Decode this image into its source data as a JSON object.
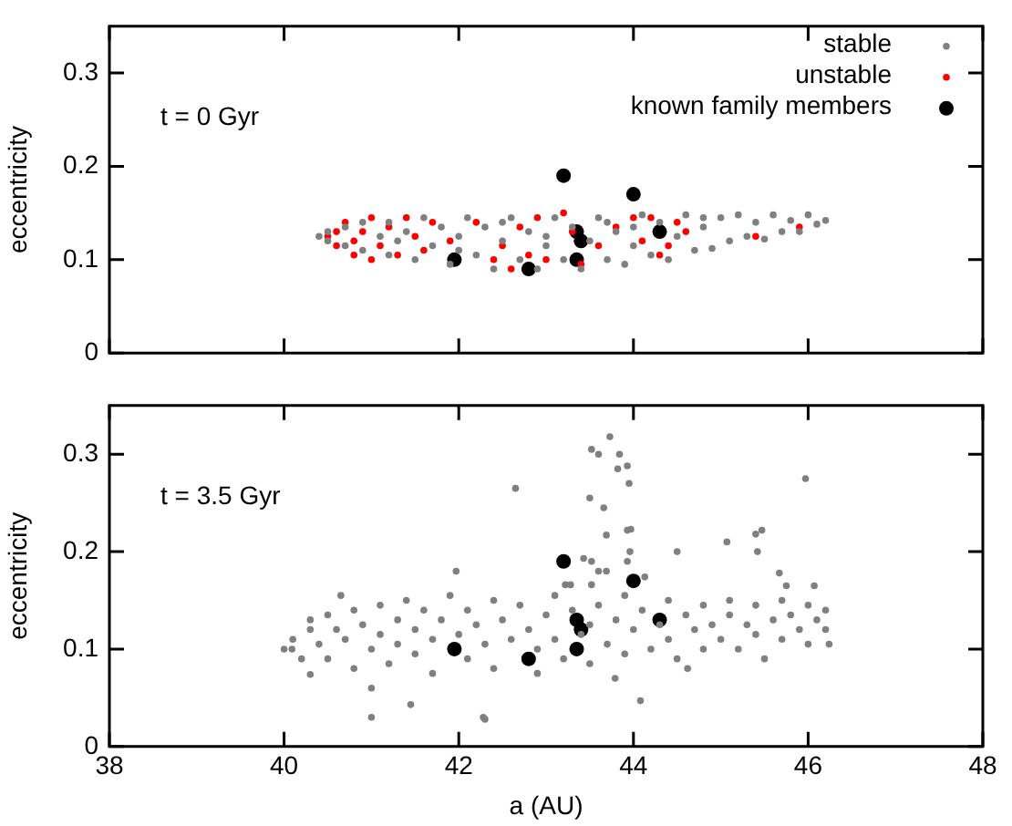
{
  "chart_data": [
    {
      "type": "scatter",
      "ylabel": "eccentricity",
      "annotations": [
        "t = 0 Gyr"
      ],
      "xlim": [
        38,
        48
      ],
      "xticks": [
        38,
        40,
        42,
        44,
        46,
        48
      ],
      "ylim": [
        0,
        0.35
      ],
      "yticks": [
        0,
        0.1,
        0.2,
        0.3
      ],
      "tick_labels": "y",
      "grid": false,
      "legend": "top right",
      "marker": "circle",
      "series": [
        {
          "name": "stable",
          "color": "#808080",
          "x": [
            40.4,
            40.5,
            40.5,
            40.7,
            40.7,
            40.9,
            40.9,
            41.1,
            41.2,
            41.2,
            41.4,
            41.5,
            41.6,
            41.7,
            41.8,
            41.9,
            42.0,
            42.1,
            42.2,
            42.3,
            42.4,
            42.5,
            42.6,
            42.7,
            42.8,
            42.9,
            43.0,
            43.1,
            43.2,
            43.3,
            43.4,
            43.5,
            43.6,
            43.7,
            43.8,
            43.9,
            44.0,
            44.1,
            44.2,
            44.3,
            44.4,
            44.5,
            44.6,
            44.7,
            44.8,
            44.9,
            45.0,
            45.1,
            45.2,
            45.3,
            45.4,
            45.5,
            45.6,
            45.7,
            45.8,
            45.9,
            46.0,
            46.1,
            46.2,
            42.5,
            43.7,
            44.8,
            41.3,
            42.0,
            43.0,
            44.0
          ],
          "values": [
            0.125,
            0.13,
            0.12,
            0.135,
            0.115,
            0.14,
            0.11,
            0.125,
            0.14,
            0.105,
            0.13,
            0.1,
            0.145,
            0.115,
            0.135,
            0.095,
            0.125,
            0.145,
            0.105,
            0.135,
            0.09,
            0.12,
            0.145,
            0.1,
            0.13,
            0.09,
            0.115,
            0.145,
            0.1,
            0.135,
            0.09,
            0.12,
            0.145,
            0.1,
            0.13,
            0.095,
            0.115,
            0.148,
            0.105,
            0.14,
            0.1,
            0.125,
            0.148,
            0.11,
            0.135,
            0.112,
            0.145,
            0.12,
            0.148,
            0.125,
            0.14,
            0.122,
            0.148,
            0.13,
            0.142,
            0.13,
            0.148,
            0.138,
            0.142,
            0.14,
            0.14,
            0.145,
            0.12,
            0.11,
            0.125,
            0.135
          ]
        },
        {
          "name": "unstable",
          "color": "#ff0000",
          "x": [
            40.5,
            40.6,
            40.6,
            40.7,
            40.8,
            40.8,
            40.9,
            41.0,
            41.0,
            41.1,
            41.2,
            41.3,
            41.4,
            41.5,
            41.6,
            41.7,
            41.9,
            42.2,
            42.4,
            42.5,
            42.6,
            42.7,
            42.8,
            42.9,
            43.0,
            43.2,
            43.3,
            43.4,
            43.6,
            43.8,
            44.0,
            44.1,
            44.2,
            44.3,
            44.4,
            44.5,
            44.6,
            45.4,
            45.9
          ],
          "values": [
            0.125,
            0.13,
            0.115,
            0.14,
            0.12,
            0.105,
            0.13,
            0.145,
            0.1,
            0.115,
            0.135,
            0.105,
            0.145,
            0.125,
            0.11,
            0.14,
            0.12,
            0.14,
            0.1,
            0.115,
            0.09,
            0.135,
            0.105,
            0.145,
            0.1,
            0.15,
            0.13,
            0.095,
            0.115,
            0.135,
            0.145,
            0.12,
            0.145,
            0.105,
            0.115,
            0.14,
            0.13,
            0.125,
            0.135
          ]
        },
        {
          "name": "known family members",
          "color": "#000000",
          "x": [
            41.95,
            42.8,
            43.2,
            43.35,
            43.35,
            43.4,
            44.0,
            44.3
          ],
          "values": [
            0.1,
            0.09,
            0.19,
            0.1,
            0.13,
            0.12,
            0.17,
            0.13
          ]
        }
      ]
    },
    {
      "type": "scatter",
      "xlabel": "a (AU)",
      "ylabel": "eccentricity",
      "annotations": [
        "t = 3.5 Gyr"
      ],
      "xlim": [
        38,
        48
      ],
      "xticks": [
        38,
        40,
        42,
        44,
        46,
        48
      ],
      "ylim": [
        0,
        0.35
      ],
      "yticks": [
        0,
        0.1,
        0.2,
        0.3
      ],
      "grid": false,
      "marker": "circle",
      "series": [
        {
          "color": "#808080",
          "x": [
            40.0,
            40.1,
            40.2,
            40.3,
            40.3,
            40.4,
            40.5,
            40.5,
            40.6,
            40.7,
            40.8,
            40.8,
            40.9,
            41.0,
            41.1,
            41.1,
            41.2,
            41.3,
            41.3,
            41.4,
            41.5,
            41.5,
            41.6,
            41.7,
            41.7,
            41.8,
            41.9,
            42.0,
            42.1,
            42.1,
            42.2,
            42.3,
            42.4,
            42.4,
            42.5,
            42.6,
            42.7,
            42.8,
            42.9,
            42.9,
            43.0,
            43.1,
            43.1,
            43.2,
            43.3,
            43.4,
            43.5,
            43.5,
            43.6,
            43.7,
            43.8,
            43.9,
            43.9,
            44.0,
            44.1,
            44.2,
            44.3,
            44.4,
            44.4,
            44.5,
            44.6,
            44.7,
            44.8,
            44.8,
            44.9,
            45.0,
            45.1,
            45.1,
            45.2,
            45.3,
            45.4,
            45.4,
            45.5,
            45.6,
            45.7,
            45.7,
            45.8,
            45.9,
            46.0,
            46.0,
            46.1,
            46.2,
            46.2,
            40.09,
            40.3,
            40.65,
            41.0,
            41.0,
            41.45,
            41.97,
            42.3,
            42.65,
            43.73,
            43.52,
            43.6,
            43.84,
            43.82,
            43.93,
            43.95,
            43.5,
            43.66,
            43.69,
            43.93,
            43.97,
            43.96,
            43.43,
            43.52,
            43.69,
            43.6,
            43.93,
            44.13,
            43.22,
            43.28,
            43.52,
            44.5,
            45.07,
            45.4,
            45.47,
            45.42,
            45.97,
            45.67,
            45.75,
            46.07,
            46.24,
            44.08,
            42.28,
            44.62,
            43.79
          ],
          "values": [
            0.1,
            0.11,
            0.09,
            0.13,
            0.12,
            0.105,
            0.135,
            0.09,
            0.12,
            0.11,
            0.14,
            0.08,
            0.125,
            0.1,
            0.145,
            0.115,
            0.085,
            0.13,
            0.105,
            0.15,
            0.095,
            0.12,
            0.14,
            0.11,
            0.075,
            0.13,
            0.155,
            0.115,
            0.09,
            0.14,
            0.125,
            0.105,
            0.15,
            0.08,
            0.13,
            0.11,
            0.145,
            0.12,
            0.1,
            0.075,
            0.135,
            0.11,
            0.155,
            0.09,
            0.14,
            0.115,
            0.085,
            0.125,
            0.145,
            0.105,
            0.13,
            0.095,
            0.155,
            0.12,
            0.14,
            0.1,
            0.125,
            0.15,
            0.11,
            0.09,
            0.135,
            0.12,
            0.145,
            0.1,
            0.125,
            0.11,
            0.15,
            0.135,
            0.1,
            0.125,
            0.145,
            0.115,
            0.09,
            0.13,
            0.15,
            0.11,
            0.135,
            0.12,
            0.145,
            0.105,
            0.13,
            0.14,
            0.12,
            0.1,
            0.074,
            0.155,
            0.06,
            0.03,
            0.043,
            0.18,
            0.028,
            0.265,
            0.318,
            0.305,
            0.3,
            0.3,
            0.285,
            0.288,
            0.27,
            0.255,
            0.245,
            0.217,
            0.222,
            0.223,
            0.2,
            0.193,
            0.19,
            0.18,
            0.18,
            0.19,
            0.174,
            0.166,
            0.166,
            0.166,
            0.2,
            0.21,
            0.218,
            0.222,
            0.2,
            0.275,
            0.178,
            0.165,
            0.165,
            0.105,
            0.047,
            0.03,
            0.08,
            0.07
          ]
        },
        {
          "color": "#000000",
          "x": [
            41.95,
            42.8,
            43.2,
            43.35,
            43.35,
            43.4,
            44.0,
            44.3
          ],
          "values": [
            0.1,
            0.09,
            0.19,
            0.1,
            0.13,
            0.12,
            0.17,
            0.13
          ]
        }
      ]
    }
  ]
}
